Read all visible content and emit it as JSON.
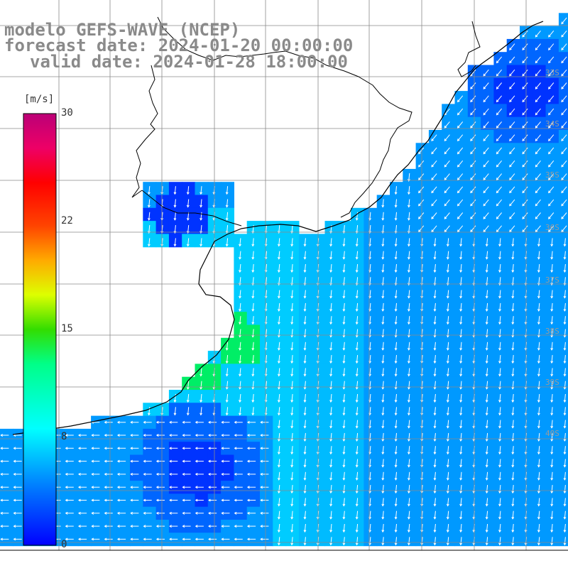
{
  "title": {
    "line1": "modelo GEFS-WAVE (NCEP)",
    "line2": "forecast date: 2024-01-20 00:00:00",
    "line3": "valid date: 2024-01-28 18:00:00"
  },
  "colorbar": {
    "unit": "[m/s]",
    "min": 0,
    "max": 30,
    "ticks": [
      "30",
      "22",
      "15",
      "8",
      "0"
    ],
    "tick_values": [
      30,
      22,
      15,
      8,
      0
    ],
    "colors": [
      "#0000ff",
      "#0088ff",
      "#00ffff",
      "#00ff00",
      "#ffff00",
      "#ff8800",
      "#ff0000",
      "#ff0088",
      "#cc0077"
    ]
  },
  "grid_labels": [
    "33S",
    "34S",
    "35S",
    "36S",
    "37S",
    "38S",
    "39S",
    "40S"
  ],
  "colors": {
    "land": "#ffffff",
    "coast": "#000000",
    "grid": "#888888",
    "arrow": "#ffffff"
  }
}
